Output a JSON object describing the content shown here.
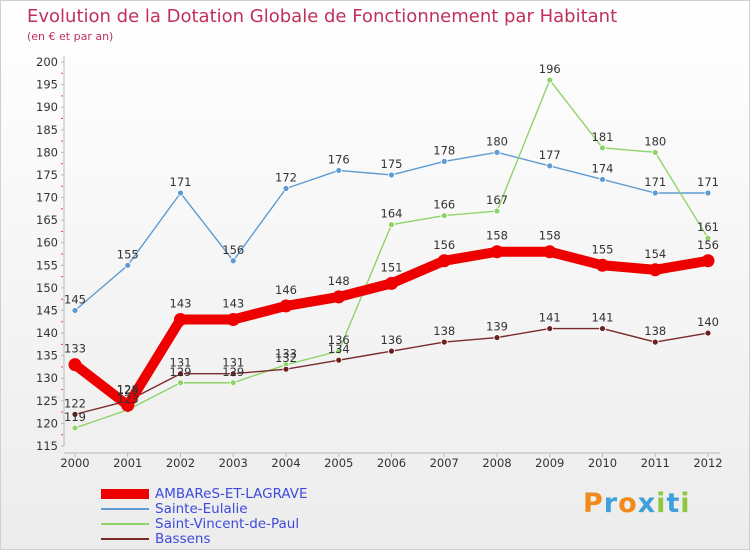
{
  "chart_data": {
    "type": "line",
    "title": "Evolution de la Dotation Globale de Fonctionnement par Habitant",
    "subtitle": "(en € et par an)",
    "xlabel": "",
    "ylabel": "",
    "categories": [
      "2000",
      "2001",
      "2002",
      "2003",
      "2004",
      "2005",
      "2006",
      "2007",
      "2008",
      "2009",
      "2010",
      "2011",
      "2012"
    ],
    "ylim": [
      115,
      200
    ],
    "yticks": [
      115,
      120,
      125,
      130,
      135,
      140,
      145,
      150,
      155,
      160,
      165,
      170,
      175,
      180,
      185,
      190,
      195,
      200
    ],
    "grid": false,
    "legend_position": "bottom-left",
    "series": [
      {
        "name": "AMBAReS-ET-LAGRAVE",
        "color": "#ee0000",
        "values": [
          133,
          124,
          143,
          143,
          146,
          148,
          151,
          156,
          158,
          158,
          155,
          154,
          156
        ],
        "labels": [
          "133",
          "124",
          "143",
          "143",
          "146",
          "148",
          "151",
          "156",
          "158",
          "158",
          "155",
          "154",
          "156"
        ]
      },
      {
        "name": "Sainte-Eulalie",
        "color": "#5f9bd0",
        "values": [
          145,
          155,
          171,
          156,
          172,
          176,
          175,
          178,
          180,
          177,
          174,
          171,
          171
        ],
        "labels": [
          "145",
          "155",
          "171",
          "156",
          "172",
          "176",
          "175",
          "178",
          "180",
          "177",
          "174",
          "171",
          "171"
        ]
      },
      {
        "name": "Saint-Vincent-de-Paul",
        "color": "#8ed46a",
        "values": [
          119,
          123,
          129,
          129,
          133,
          136,
          164,
          166,
          167,
          196,
          181,
          180,
          161
        ],
        "labels": [
          "119",
          "123",
          "129",
          "129",
          "133",
          "136",
          "164",
          "166",
          "167",
          "196",
          "181",
          "180",
          "161"
        ]
      },
      {
        "name": "Bassens",
        "color": "#7a2a2a",
        "values": [
          122,
          125,
          131,
          131,
          132,
          134,
          136,
          138,
          139,
          141,
          141,
          138,
          140
        ],
        "labels": [
          "122",
          "125",
          "131",
          "131",
          "132",
          "134",
          "136",
          "138",
          "139",
          "141",
          "141",
          "138",
          "140"
        ]
      }
    ]
  },
  "logo": {
    "text": "Proxiti",
    "letters": [
      {
        "ch": "P",
        "color": "#f08a1c"
      },
      {
        "ch": "r",
        "color": "#3fa0dc"
      },
      {
        "ch": "o",
        "color": "#f08a1c"
      },
      {
        "ch": "x",
        "color": "#3fa0dc"
      },
      {
        "ch": "i",
        "color": "#8ec63f"
      },
      {
        "ch": "t",
        "color": "#3fa0dc"
      },
      {
        "ch": "i",
        "color": "#8ec63f"
      }
    ]
  }
}
